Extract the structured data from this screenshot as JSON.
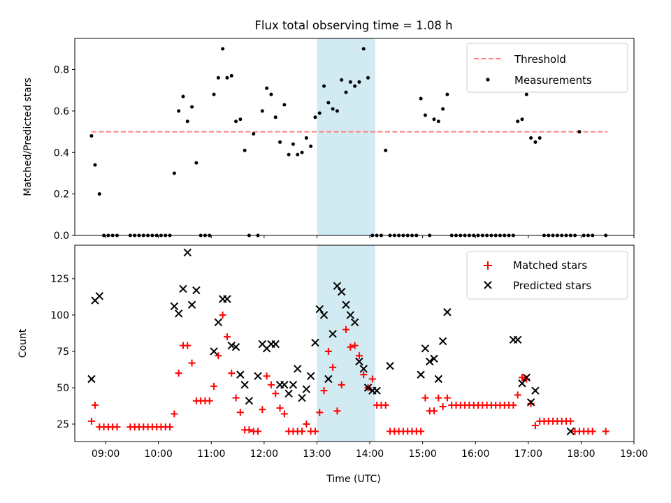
{
  "title": "Flux total observing time = 1.08 h",
  "colors": {
    "threshold": "#ff8080",
    "matched": "#ff0000",
    "predicted": "#000000",
    "highlight": "#add8e6"
  },
  "x_ticks": [
    "09:00",
    "10:00",
    "11:00",
    "12:00",
    "13:00",
    "14:00",
    "15:00",
    "16:00",
    "17:00",
    "18:00",
    "19:00"
  ],
  "chart_data": [
    {
      "type": "scatter",
      "ylabel": "Matched/Predicted stars",
      "xlabel": "",
      "xlim": [
        "08:25",
        "19:00"
      ],
      "ylim": [
        0,
        0.95
      ],
      "y_ticks": [
        "0.0",
        "0.2",
        "0.4",
        "0.6",
        "0.8"
      ],
      "highlight": {
        "start": "13:00",
        "end": "14:06"
      },
      "legend": {
        "placement": "top-right",
        "entries": [
          "Threshold",
          "Measurements"
        ]
      },
      "threshold": {
        "name": "Threshold",
        "value": 0.5,
        "x": [
          "08:44",
          "18:30"
        ]
      },
      "series": [
        {
          "name": "Measurements",
          "x": [
            "08:44",
            "08:48",
            "08:53",
            "08:58",
            "09:03",
            "09:08",
            "09:13",
            "09:28",
            "09:33",
            "09:38",
            "09:43",
            "09:48",
            "09:53",
            "09:58",
            "10:03",
            "10:08",
            "10:13",
            "10:18",
            "10:23",
            "10:28",
            "10:33",
            "10:38",
            "10:43",
            "10:48",
            "10:53",
            "10:58",
            "11:03",
            "11:08",
            "11:13",
            "11:18",
            "11:23",
            "11:28",
            "11:33",
            "11:38",
            "11:43",
            "11:48",
            "11:53",
            "11:58",
            "12:03",
            "12:08",
            "12:13",
            "12:18",
            "12:23",
            "12:28",
            "12:33",
            "12:38",
            "12:43",
            "12:48",
            "12:53",
            "12:58",
            "13:03",
            "13:08",
            "13:13",
            "13:18",
            "13:23",
            "13:28",
            "13:33",
            "13:38",
            "13:43",
            "13:48",
            "13:53",
            "13:58",
            "14:03",
            "14:08",
            "14:13",
            "14:18",
            "14:23",
            "14:28",
            "14:33",
            "14:38",
            "14:43",
            "14:48",
            "14:53",
            "14:58",
            "15:03",
            "15:08",
            "15:13",
            "15:18",
            "15:23",
            "15:28",
            "15:33",
            "15:38",
            "15:43",
            "15:48",
            "15:53",
            "15:58",
            "16:03",
            "16:08",
            "16:13",
            "16:18",
            "16:23",
            "16:28",
            "16:33",
            "16:38",
            "16:43",
            "16:48",
            "16:53",
            "16:58",
            "17:03",
            "17:08",
            "17:13",
            "17:18",
            "17:23",
            "17:28",
            "17:33",
            "17:38",
            "17:43",
            "17:48",
            "17:53",
            "17:58",
            "18:03",
            "18:08",
            "18:13",
            "18:28"
          ],
          "y": [
            0.48,
            0.34,
            0.2,
            0,
            0,
            0,
            0,
            0,
            0,
            0,
            0,
            0,
            0,
            0,
            0,
            0,
            0,
            0.3,
            0.6,
            0.67,
            0.55,
            0.62,
            0.35,
            0,
            0,
            0,
            0.68,
            0.76,
            0.9,
            0.76,
            0.77,
            0.55,
            0.56,
            0.41,
            0,
            0.49,
            0,
            0.6,
            0.71,
            0.68,
            0.57,
            0.45,
            0.63,
            0.39,
            0.44,
            0.39,
            0.4,
            0.47,
            0.43,
            0.57,
            0.59,
            0.72,
            0.64,
            0.61,
            0.6,
            0.75,
            0.69,
            0.74,
            0.72,
            0.74,
            0.9,
            0.76,
            0,
            0,
            0,
            0.41,
            0,
            0,
            0,
            0,
            0,
            0,
            0,
            0.66,
            0.58,
            0,
            0.56,
            0.55,
            0.61,
            0.68,
            0,
            0,
            0,
            0,
            0,
            0,
            0,
            0,
            0,
            0,
            0,
            0,
            0,
            0,
            0,
            0.55,
            0.56,
            0.68,
            0.47,
            0.45,
            0.47,
            0,
            0,
            0,
            0,
            0,
            0,
            0,
            0,
            0.5,
            0,
            0,
            0,
            0
          ]
        }
      ]
    },
    {
      "type": "scatter",
      "ylabel": "Count",
      "xlabel": "Time (UTC)",
      "xlim": [
        "08:25",
        "19:00"
      ],
      "ylim": [
        13,
        148
      ],
      "y_ticks": [
        "25",
        "50",
        "75",
        "100",
        "125"
      ],
      "highlight": {
        "start": "13:00",
        "end": "14:06"
      },
      "legend": {
        "placement": "top-right",
        "entries": [
          "Matched stars",
          "Predicted stars"
        ]
      },
      "series": [
        {
          "name": "Matched stars",
          "marker": "+",
          "x": [
            "08:44",
            "08:48",
            "08:53",
            "08:58",
            "09:03",
            "09:08",
            "09:13",
            "09:28",
            "09:33",
            "09:38",
            "09:43",
            "09:48",
            "09:53",
            "09:58",
            "10:03",
            "10:08",
            "10:13",
            "10:18",
            "10:23",
            "10:28",
            "10:33",
            "10:38",
            "10:43",
            "10:48",
            "10:53",
            "10:58",
            "11:03",
            "11:08",
            "11:13",
            "11:18",
            "11:23",
            "11:28",
            "11:33",
            "11:38",
            "11:43",
            "11:48",
            "11:53",
            "11:58",
            "12:03",
            "12:08",
            "12:13",
            "12:18",
            "12:23",
            "12:28",
            "12:33",
            "12:38",
            "12:43",
            "12:48",
            "12:53",
            "12:58",
            "13:03",
            "13:08",
            "13:13",
            "13:18",
            "13:23",
            "13:28",
            "13:33",
            "13:38",
            "13:43",
            "13:48",
            "13:53",
            "13:58",
            "14:03",
            "14:08",
            "14:13",
            "14:18",
            "14:23",
            "14:28",
            "14:33",
            "14:38",
            "14:43",
            "14:48",
            "14:53",
            "14:58",
            "15:03",
            "15:08",
            "15:13",
            "15:18",
            "15:23",
            "15:28",
            "15:33",
            "15:38",
            "15:43",
            "15:48",
            "15:53",
            "15:58",
            "16:03",
            "16:08",
            "16:13",
            "16:18",
            "16:23",
            "16:28",
            "16:33",
            "16:38",
            "16:43",
            "16:48",
            "16:53",
            "16:58",
            "17:03",
            "17:08",
            "17:13",
            "17:18",
            "17:23",
            "17:28",
            "17:33",
            "17:38",
            "17:43",
            "17:48",
            "17:53",
            "17:58",
            "18:03",
            "18:08",
            "18:13",
            "18:28"
          ],
          "y": [
            27,
            38,
            23,
            23,
            23,
            23,
            23,
            23,
            23,
            23,
            23,
            23,
            23,
            23,
            23,
            23,
            23,
            32,
            60,
            79,
            79,
            67,
            41,
            41,
            41,
            41,
            51,
            72,
            100,
            85,
            60,
            43,
            33,
            21,
            21,
            20,
            20,
            35,
            58,
            52,
            46,
            36,
            32,
            20,
            20,
            20,
            20,
            25,
            20,
            20,
            33,
            48,
            75,
            64,
            34,
            52,
            90,
            78,
            79,
            72,
            59,
            50,
            56,
            38,
            38,
            38,
            20,
            20,
            20,
            20,
            20,
            20,
            20,
            20,
            43,
            34,
            34,
            43,
            37,
            43,
            38,
            38,
            38,
            38,
            38,
            38,
            38,
            38,
            38,
            38,
            38,
            38,
            38,
            38,
            38,
            45,
            57,
            56,
            39,
            24,
            27,
            27,
            27,
            27,
            27,
            27,
            27,
            27,
            20,
            20,
            20,
            20,
            20,
            20
          ]
        },
        {
          "name": "Predicted stars",
          "marker": "x",
          "x": [
            "08:44",
            "08:48",
            "08:53",
            "10:18",
            "10:23",
            "10:28",
            "10:33",
            "10:38",
            "10:43",
            "11:03",
            "11:08",
            "11:13",
            "11:18",
            "11:23",
            "11:28",
            "11:33",
            "11:38",
            "11:43",
            "11:53",
            "11:58",
            "12:03",
            "12:08",
            "12:13",
            "12:18",
            "12:23",
            "12:28",
            "12:33",
            "12:38",
            "12:43",
            "12:48",
            "12:53",
            "12:58",
            "13:03",
            "13:08",
            "13:13",
            "13:18",
            "13:23",
            "13:28",
            "13:33",
            "13:38",
            "13:43",
            "13:48",
            "13:53",
            "13:58",
            "14:03",
            "14:08",
            "14:23",
            "14:58",
            "15:03",
            "15:08",
            "15:13",
            "15:18",
            "15:23",
            "15:28",
            "16:43",
            "16:48",
            "16:53",
            "16:58",
            "17:03",
            "17:08",
            "17:48"
          ],
          "y": [
            56,
            110,
            113,
            106,
            101,
            118,
            143,
            107,
            117,
            75,
            95,
            111,
            111,
            79,
            78,
            59,
            52,
            41,
            58,
            80,
            77,
            80,
            80,
            52,
            52,
            46,
            52,
            63,
            43,
            49,
            58,
            81,
            104,
            100,
            56,
            87,
            120,
            116,
            107,
            100,
            95,
            68,
            63,
            50,
            48,
            48,
            65,
            59,
            77,
            68,
            70,
            56,
            82,
            102,
            83,
            83,
            53,
            57,
            40,
            48,
            20
          ]
        }
      ]
    }
  ]
}
